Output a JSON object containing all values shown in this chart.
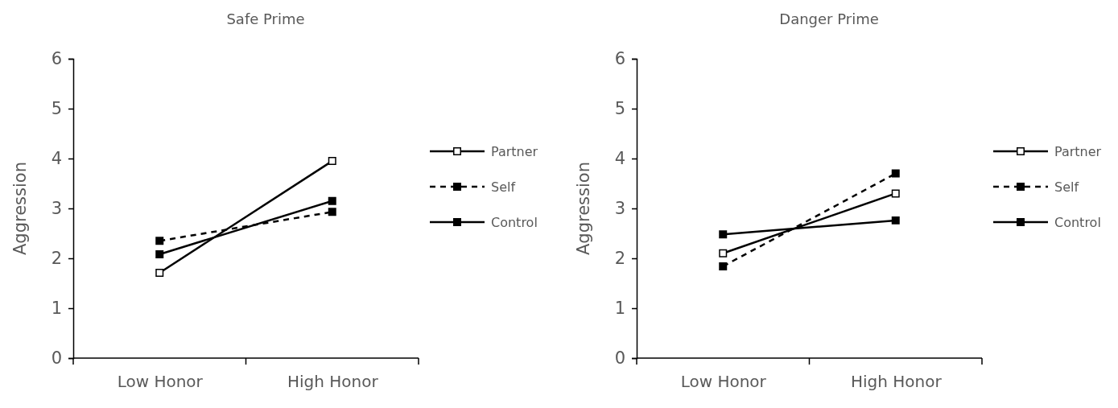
{
  "chart_data": [
    {
      "type": "line",
      "title": "Safe Prime",
      "ylabel": "Aggression",
      "categories": [
        "Low Honor",
        "High Honor"
      ],
      "ylim": [
        0,
        6
      ],
      "yticks": [
        0,
        1,
        2,
        3,
        4,
        5,
        6
      ],
      "legend": "right",
      "grid": false,
      "marker": "square",
      "series": [
        {
          "name": "Partner",
          "color": "#000000",
          "values": [
            1.71,
            3.95
          ],
          "line_style": "solid"
        },
        {
          "name": "Self",
          "color": "#000000",
          "values": [
            2.35,
            2.93
          ],
          "line_style": "dashed"
        },
        {
          "name": "Control",
          "color": "#000000",
          "values": [
            2.08,
            3.15
          ],
          "line_style": "solid"
        }
      ]
    },
    {
      "type": "line",
      "title": "Danger Prime",
      "ylabel": "Aggression",
      "categories": [
        "Low Honor",
        "High Honor"
      ],
      "ylim": [
        0,
        6
      ],
      "yticks": [
        0,
        1,
        2,
        3,
        4,
        5,
        6
      ],
      "legend": "right",
      "grid": false,
      "marker": "square",
      "series": [
        {
          "name": "Partner",
          "color": "#000000",
          "values": [
            2.1,
            3.3
          ],
          "line_style": "solid"
        },
        {
          "name": "Self",
          "color": "#000000",
          "values": [
            1.84,
            3.7
          ],
          "line_style": "dashed"
        },
        {
          "name": "Control",
          "color": "#000000",
          "values": [
            2.48,
            2.76
          ],
          "line_style": "solid"
        }
      ]
    }
  ]
}
